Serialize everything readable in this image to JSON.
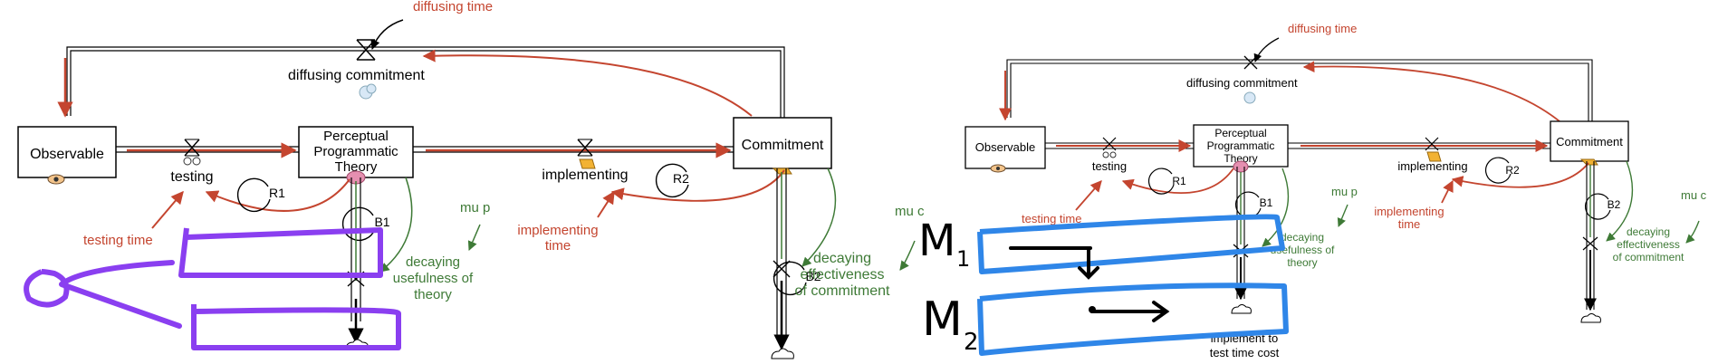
{
  "colors": {
    "flow_red": "#c4452f",
    "link_green": "#3e7a36",
    "annotation_purple": "#8a3ff0",
    "annotation_blue": "#2f86e8"
  },
  "left": {
    "stocks": {
      "observable": "Observable",
      "ppt_line1": "Perceptual",
      "ppt_line2": "Programmatic",
      "ppt_line3": "Theory",
      "commitment": "Commitment"
    },
    "flows": {
      "diffusing_time": "diffusing time",
      "diffusing_commitment": "diffusing commitment",
      "testing": "testing",
      "implementing": "implementing",
      "testing_time": "testing time",
      "implementing_time_1": "implementing",
      "implementing_time_2": "time",
      "decaying_usefulness_1": "decaying",
      "decaying_usefulness_2": "usefulness of",
      "decaying_usefulness_3": "theory",
      "decaying_effectiveness_1": "decaying",
      "decaying_effectiveness_2": "effectiveness",
      "decaying_effectiveness_3": "of commitment",
      "mu_p": "mu p",
      "mu_c": "mu c"
    },
    "loops": {
      "r1": "R1",
      "r2": "R2",
      "b1": "B1",
      "b2": "B2"
    }
  },
  "right": {
    "stocks": {
      "observable": "Observable",
      "ppt_line1": "Perceptual",
      "ppt_line2": "Programmatic",
      "ppt_line3": "Theory",
      "commitment": "Commitment"
    },
    "flows": {
      "diffusing_time": "diffusing time",
      "diffusing_commitment": "diffusing commitment",
      "testing": "testing",
      "implementing": "implementing",
      "testing_time": "testing time",
      "implementing_time_1": "implementing",
      "implementing_time_2": "time",
      "decaying_usefulness_1": "decaying",
      "decaying_usefulness_2": "usefulness of",
      "decaying_usefulness_3": "theory",
      "decaying_effectiveness_1": "decaying",
      "decaying_effectiveness_2": "effectiveness",
      "decaying_effectiveness_3": "of commitment",
      "mu_p": "mu p",
      "mu_c": "mu c",
      "implement_cost_1": "implement to",
      "implement_cost_2": "test time cost"
    },
    "loops": {
      "r1": "R1",
      "r2": "R2",
      "b1": "B1",
      "b2": "B2"
    },
    "handwriting": {
      "m1_letter": "M",
      "m1_sub": "1",
      "m2_letter": "M",
      "m2_sub": "2"
    }
  }
}
